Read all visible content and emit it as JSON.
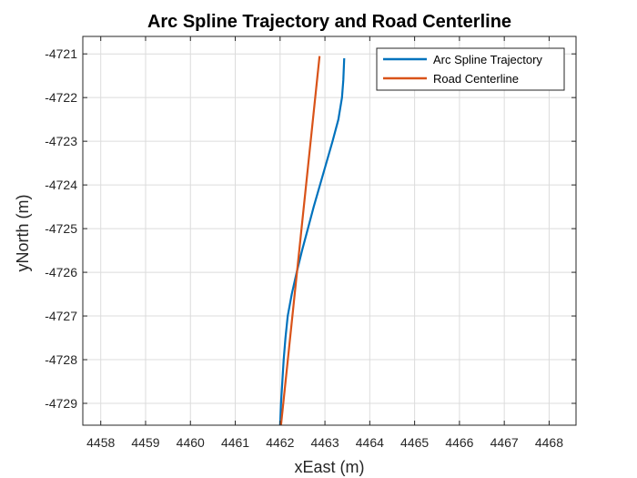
{
  "chart_data": {
    "type": "line",
    "title": "Arc Spline Trajectory and Road Centerline",
    "xlabel": "xEast (m)",
    "ylabel": "yNorth (m)",
    "xlim": [
      4457.6,
      4468.6
    ],
    "ylim": [
      -4729.5,
      -4720.6
    ],
    "xticks": [
      4458,
      4459,
      4460,
      4461,
      4462,
      4463,
      4464,
      4465,
      4466,
      4467,
      4468
    ],
    "yticks": [
      -4721,
      -4722,
      -4723,
      -4724,
      -4725,
      -4726,
      -4727,
      -4728,
      -4729
    ],
    "grid": true,
    "legend_position": "top-right",
    "series": [
      {
        "name": "Arc Spline Trajectory",
        "color": "#0072BD",
        "points": [
          [
            4463.43,
            -4721.1
          ],
          [
            4463.41,
            -4721.6
          ],
          [
            4463.38,
            -4722.0
          ],
          [
            4463.3,
            -4722.5
          ],
          [
            4463.17,
            -4723.0
          ],
          [
            4463.03,
            -4723.5
          ],
          [
            4462.89,
            -4724.0
          ],
          [
            4462.75,
            -4724.5
          ],
          [
            4462.62,
            -4725.0
          ],
          [
            4462.49,
            -4725.5
          ],
          [
            4462.37,
            -4726.0
          ],
          [
            4462.26,
            -4726.5
          ],
          [
            4462.17,
            -4727.0
          ],
          [
            4462.12,
            -4727.5
          ],
          [
            4462.08,
            -4728.0
          ],
          [
            4462.05,
            -4728.5
          ],
          [
            4462.02,
            -4729.0
          ],
          [
            4462.0,
            -4729.5
          ]
        ]
      },
      {
        "name": "Road Centerline",
        "color": "#D95319",
        "points": [
          [
            4462.88,
            -4721.05
          ],
          [
            4462.02,
            -4729.5
          ]
        ]
      }
    ]
  }
}
